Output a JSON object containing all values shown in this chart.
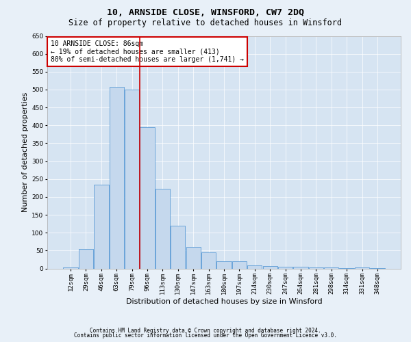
{
  "title": "10, ARNSIDE CLOSE, WINSFORD, CW7 2DQ",
  "subtitle": "Size of property relative to detached houses in Winsford",
  "xlabel": "Distribution of detached houses by size in Winsford",
  "ylabel": "Number of detached properties",
  "bar_labels": [
    "12sqm",
    "29sqm",
    "46sqm",
    "63sqm",
    "79sqm",
    "96sqm",
    "113sqm",
    "130sqm",
    "147sqm",
    "163sqm",
    "180sqm",
    "197sqm",
    "214sqm",
    "230sqm",
    "247sqm",
    "264sqm",
    "281sqm",
    "298sqm",
    "314sqm",
    "331sqm",
    "348sqm"
  ],
  "bar_values": [
    3,
    55,
    235,
    507,
    500,
    395,
    222,
    120,
    60,
    45,
    20,
    20,
    8,
    7,
    5,
    5,
    3,
    2,
    1,
    3,
    1
  ],
  "bar_color": "#c5d8ed",
  "bar_edge_color": "#5b9bd5",
  "vline_x_idx": 4,
  "vline_color": "#cc0000",
  "annotation_text": "10 ARNSIDE CLOSE: 86sqm\n← 19% of detached houses are smaller (413)\n80% of semi-detached houses are larger (1,741) →",
  "annotation_box_color": "#ffffff",
  "annotation_box_edge": "#cc0000",
  "ylim": [
    0,
    650
  ],
  "yticks": [
    0,
    50,
    100,
    150,
    200,
    250,
    300,
    350,
    400,
    450,
    500,
    550,
    600,
    650
  ],
  "footer1": "Contains HM Land Registry data © Crown copyright and database right 2024.",
  "footer2": "Contains public sector information licensed under the Open Government Licence v3.0.",
  "bg_color": "#e8f0f8",
  "plot_bg_color": "#d6e4f2",
  "title_fontsize": 9.5,
  "subtitle_fontsize": 8.5,
  "tick_fontsize": 6.5,
  "ylabel_fontsize": 8,
  "xlabel_fontsize": 8,
  "annotation_fontsize": 7,
  "footer_fontsize": 5.5
}
